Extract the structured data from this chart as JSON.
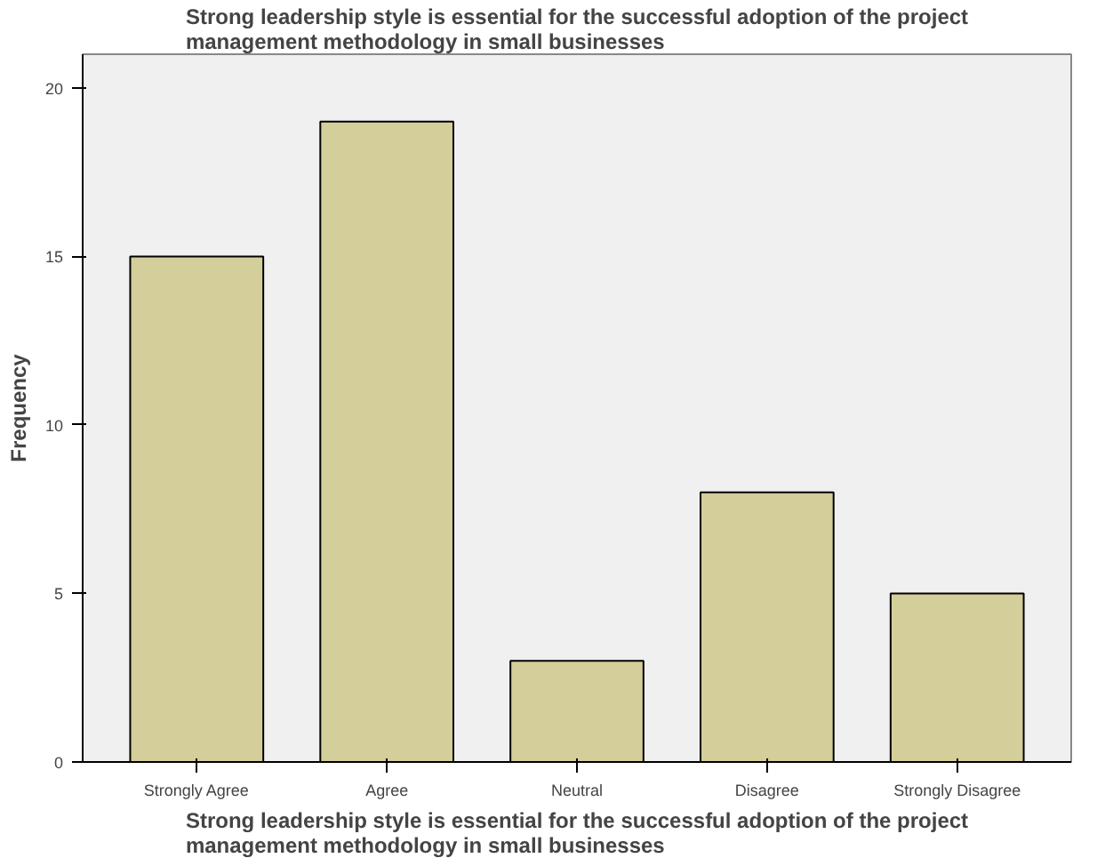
{
  "chart_data": {
    "type": "bar",
    "title": "Strong leadership style is essential for the successful adoption of the project management methodology in small businesses",
    "xlabel": "Strong leadership style is essential for the successful adoption of the project management methodology in small businesses",
    "ylabel": "Frequency",
    "categories": [
      "Strongly Agree",
      "Agree",
      "Neutral",
      "Disagree",
      "Strongly Disagree"
    ],
    "values": [
      15,
      19,
      3,
      8,
      5
    ],
    "color": "#d3ce9a",
    "ylim": [
      0,
      21
    ],
    "yticks": [
      0,
      5,
      10,
      15,
      20
    ],
    "grid": false
  }
}
